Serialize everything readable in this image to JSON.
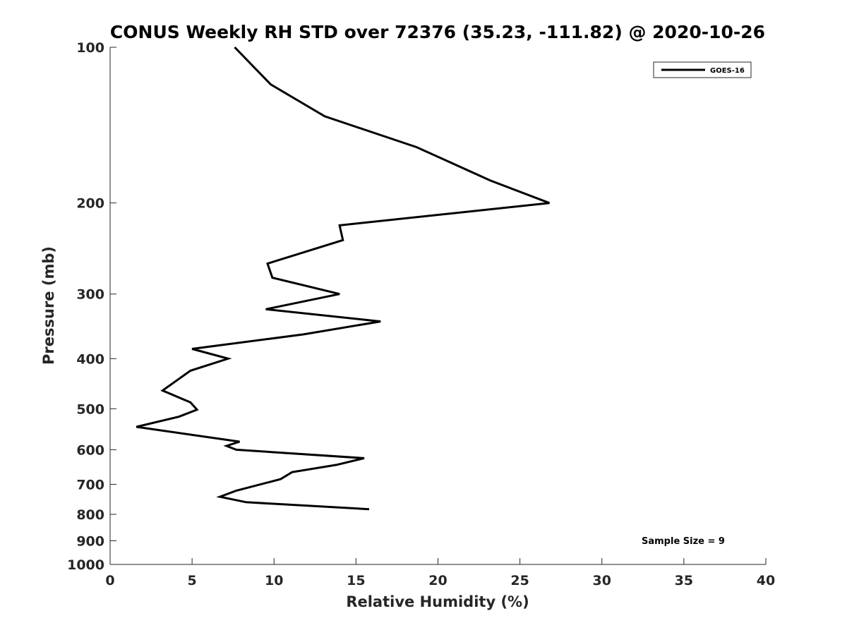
{
  "chart_data": {
    "type": "line",
    "title": "CONUS Weekly RH STD over 72376 (35.23, -111.82) @ 2020-10-26",
    "xlabel": "Relative Humidity (%)",
    "ylabel": "Pressure (mb)",
    "xlim": [
      0,
      40
    ],
    "ylim": [
      100,
      1000
    ],
    "y_scale": "log",
    "y_reversed": true,
    "x_ticks": [
      0,
      5,
      10,
      15,
      20,
      25,
      30,
      35,
      40
    ],
    "y_ticks": [
      100,
      200,
      300,
      400,
      500,
      600,
      700,
      800,
      900,
      1000
    ],
    "grid": false,
    "legend_position": "top-right",
    "annotation": "Sample Size = 9",
    "series": [
      {
        "name": "GOES-16",
        "color": "#000000",
        "points": [
          {
            "x": 7.6,
            "y": 100
          },
          {
            "x": 9.8,
            "y": 118
          },
          {
            "x": 13.1,
            "y": 136
          },
          {
            "x": 18.7,
            "y": 156
          },
          {
            "x": 23.2,
            "y": 181
          },
          {
            "x": 26.8,
            "y": 200
          },
          {
            "x": 14.0,
            "y": 221
          },
          {
            "x": 14.2,
            "y": 236
          },
          {
            "x": 9.6,
            "y": 262
          },
          {
            "x": 9.9,
            "y": 279
          },
          {
            "x": 14.0,
            "y": 300
          },
          {
            "x": 9.5,
            "y": 321
          },
          {
            "x": 16.5,
            "y": 339
          },
          {
            "x": 11.8,
            "y": 359
          },
          {
            "x": 5.0,
            "y": 383
          },
          {
            "x": 7.2,
            "y": 400
          },
          {
            "x": 4.9,
            "y": 422
          },
          {
            "x": 3.2,
            "y": 461
          },
          {
            "x": 4.9,
            "y": 486
          },
          {
            "x": 5.3,
            "y": 502
          },
          {
            "x": 4.2,
            "y": 518
          },
          {
            "x": 1.6,
            "y": 542
          },
          {
            "x": 7.9,
            "y": 579
          },
          {
            "x": 7.1,
            "y": 590
          },
          {
            "x": 7.7,
            "y": 600
          },
          {
            "x": 15.5,
            "y": 623
          },
          {
            "x": 13.8,
            "y": 642
          },
          {
            "x": 11.1,
            "y": 663
          },
          {
            "x": 10.4,
            "y": 684
          },
          {
            "x": 7.7,
            "y": 720
          },
          {
            "x": 6.7,
            "y": 740
          },
          {
            "x": 8.3,
            "y": 758
          },
          {
            "x": 15.8,
            "y": 782
          }
        ]
      }
    ]
  }
}
